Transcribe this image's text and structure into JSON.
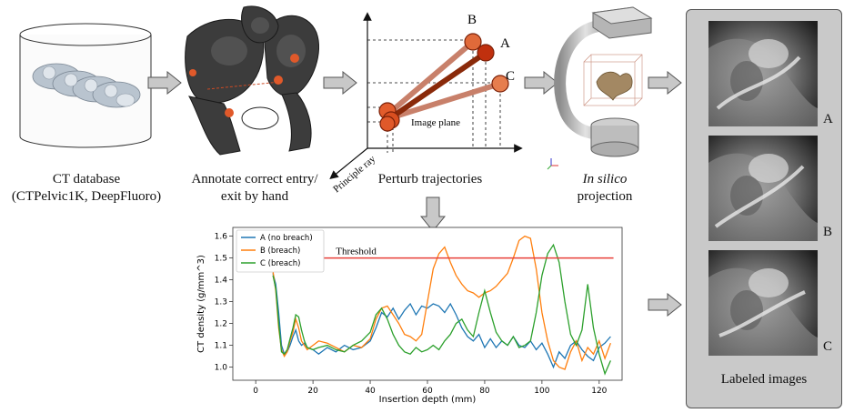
{
  "steps": {
    "ct_database": {
      "line1": "CT database",
      "line2": "(CTPelvic1K, DeepFluoro)"
    },
    "annotate": {
      "line1": "Annotate correct entry/",
      "line2": "exit by hand"
    },
    "perturb": {
      "label": "Perturb trajectories",
      "image_plane": "Image plane",
      "principle_ray": "Principle ray",
      "traj_a": "A",
      "traj_b": "B",
      "traj_c": "C"
    },
    "projection": {
      "line1_italic": "In silico",
      "line2": "projection"
    }
  },
  "labeled_images": {
    "title": "Labeled images",
    "labels": [
      "A",
      "B",
      "C"
    ]
  },
  "colors": {
    "arrow_fill": "#c8c8c8",
    "arrow_stroke": "#555555",
    "traj_light": "#c8806a",
    "traj_dark": "#8a2a0a",
    "point": "#e0592a",
    "series_a": "#1f77b4",
    "series_b": "#ff7f0e",
    "series_c": "#2ca02c",
    "threshold": "#e8403a"
  },
  "chart_data": {
    "type": "line",
    "title": "",
    "xlabel": "Insertion depth (mm)",
    "ylabel": "CT density (g/mm^3)",
    "xlim": [
      -8,
      128
    ],
    "ylim": [
      0.94,
      1.64
    ],
    "xticks": [
      0,
      20,
      40,
      60,
      80,
      100,
      120
    ],
    "yticks": [
      1.0,
      1.1,
      1.2,
      1.3,
      1.4,
      1.5,
      1.6
    ],
    "legend_position": "top-left",
    "threshold": {
      "value": 1.5,
      "label": "Threshold"
    },
    "series": [
      {
        "name": "A (no breach)",
        "color": "#1f77b4",
        "x": [
          6,
          7,
          8,
          9,
          10,
          11,
          12,
          13,
          14,
          15,
          16,
          17,
          18,
          20,
          22,
          25,
          28,
          31,
          34,
          37,
          40,
          42,
          44,
          46,
          48,
          50,
          52,
          54,
          56,
          58,
          60,
          62,
          64,
          66,
          68,
          70,
          72,
          74,
          76,
          78,
          80,
          82,
          84,
          86,
          88,
          90,
          92,
          94,
          96,
          98,
          100,
          102,
          104,
          106,
          108,
          110,
          112,
          114,
          116,
          118,
          120,
          122,
          124
        ],
        "y": [
          1.43,
          1.38,
          1.25,
          1.1,
          1.06,
          1.07,
          1.1,
          1.14,
          1.17,
          1.12,
          1.1,
          1.11,
          1.09,
          1.08,
          1.06,
          1.09,
          1.07,
          1.1,
          1.08,
          1.09,
          1.12,
          1.18,
          1.25,
          1.23,
          1.27,
          1.22,
          1.26,
          1.29,
          1.24,
          1.28,
          1.27,
          1.29,
          1.28,
          1.25,
          1.29,
          1.24,
          1.18,
          1.14,
          1.12,
          1.15,
          1.09,
          1.13,
          1.09,
          1.12,
          1.1,
          1.14,
          1.1,
          1.09,
          1.12,
          1.08,
          1.11,
          1.06,
          1.0,
          1.07,
          1.04,
          1.1,
          1.12,
          1.08,
          1.05,
          1.03,
          1.09,
          1.11,
          1.14
        ]
      },
      {
        "name": "B (breach)",
        "color": "#ff7f0e",
        "x": [
          6,
          7,
          8,
          9,
          10,
          11,
          12,
          13,
          14,
          15,
          16,
          17,
          18,
          20,
          22,
          25,
          28,
          31,
          34,
          37,
          40,
          42,
          44,
          46,
          48,
          50,
          52,
          54,
          56,
          58,
          60,
          62,
          64,
          66,
          68,
          70,
          72,
          74,
          76,
          78,
          80,
          82,
          84,
          86,
          88,
          90,
          92,
          94,
          96,
          98,
          100,
          102,
          104,
          106,
          108,
          110,
          112,
          114,
          116,
          118,
          120,
          122,
          124
        ],
        "y": [
          1.44,
          1.35,
          1.18,
          1.08,
          1.05,
          1.07,
          1.12,
          1.16,
          1.22,
          1.18,
          1.12,
          1.1,
          1.08,
          1.1,
          1.12,
          1.11,
          1.09,
          1.07,
          1.1,
          1.09,
          1.13,
          1.22,
          1.27,
          1.28,
          1.24,
          1.2,
          1.15,
          1.14,
          1.12,
          1.15,
          1.3,
          1.45,
          1.52,
          1.55,
          1.48,
          1.42,
          1.38,
          1.35,
          1.34,
          1.32,
          1.34,
          1.35,
          1.37,
          1.4,
          1.43,
          1.5,
          1.58,
          1.6,
          1.59,
          1.45,
          1.25,
          1.12,
          1.03,
          1.0,
          0.99,
          1.07,
          1.12,
          1.03,
          1.09,
          1.06,
          1.12,
          1.04,
          1.11
        ]
      },
      {
        "name": "C (breach)",
        "color": "#2ca02c",
        "x": [
          6,
          7,
          8,
          9,
          10,
          11,
          12,
          13,
          14,
          15,
          16,
          17,
          18,
          20,
          22,
          25,
          28,
          31,
          34,
          37,
          40,
          42,
          44,
          46,
          48,
          50,
          52,
          54,
          56,
          58,
          60,
          62,
          64,
          66,
          68,
          70,
          72,
          74,
          76,
          78,
          80,
          82,
          84,
          86,
          88,
          90,
          92,
          94,
          96,
          98,
          100,
          102,
          104,
          106,
          108,
          110,
          112,
          114,
          116,
          118,
          120,
          122,
          124
        ],
        "y": [
          1.42,
          1.36,
          1.2,
          1.07,
          1.06,
          1.08,
          1.13,
          1.18,
          1.24,
          1.23,
          1.17,
          1.12,
          1.09,
          1.08,
          1.09,
          1.1,
          1.08,
          1.07,
          1.1,
          1.12,
          1.16,
          1.24,
          1.27,
          1.22,
          1.15,
          1.1,
          1.07,
          1.06,
          1.09,
          1.07,
          1.08,
          1.1,
          1.08,
          1.12,
          1.15,
          1.2,
          1.22,
          1.17,
          1.14,
          1.25,
          1.35,
          1.25,
          1.16,
          1.12,
          1.1,
          1.14,
          1.09,
          1.1,
          1.12,
          1.25,
          1.42,
          1.52,
          1.56,
          1.48,
          1.3,
          1.15,
          1.1,
          1.17,
          1.38,
          1.18,
          1.06,
          0.97,
          1.03
        ]
      }
    ]
  }
}
